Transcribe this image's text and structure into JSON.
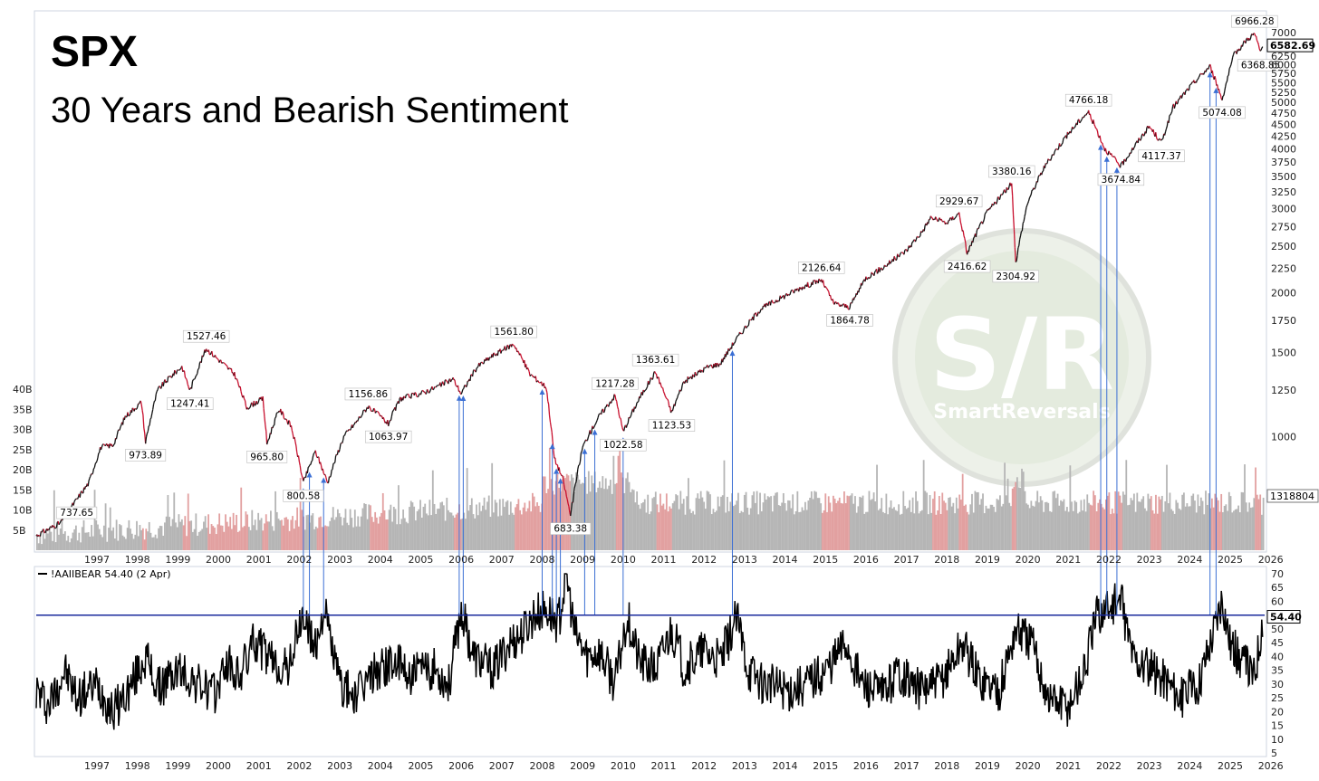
{
  "chart_data": {
    "type": "line",
    "title": "SPX",
    "subtitle": "30 Years and Bearish Sentiment",
    "x_ticks": [
      "1997",
      "1998",
      "1999",
      "2000",
      "2001",
      "2002",
      "2003",
      "2004",
      "2005",
      "2006",
      "2007",
      "2008",
      "2009",
      "2010",
      "2011",
      "2012",
      "2013",
      "2014",
      "2015",
      "2016",
      "2017",
      "2018",
      "2019",
      "2020",
      "2021",
      "2022",
      "2023",
      "2024",
      "2025",
      "2026"
    ],
    "price_axis": {
      "scale": "log",
      "ticks": [
        "1000",
        "1250",
        "1500",
        "1750",
        "2000",
        "2250",
        "2500",
        "2750",
        "3000",
        "3250",
        "3500",
        "3750",
        "4000",
        "4250",
        "4500",
        "4750",
        "5000",
        "5250",
        "5500",
        "5750",
        "6000",
        "6250",
        "7000"
      ],
      "last_value": "6582.69"
    },
    "volume_axis": {
      "ticks": [
        "5B",
        "10B",
        "15B",
        "20B",
        "25B",
        "30B",
        "35B",
        "40B"
      ],
      "last_value": "1318804"
    },
    "sentiment_axis": {
      "ticks": [
        "5",
        "10",
        "15",
        "20",
        "25",
        "30",
        "35",
        "40",
        "45",
        "50",
        "55",
        "60",
        "65",
        "70"
      ],
      "threshold": 55,
      "last_value": "54.40"
    },
    "series": [
      {
        "name": "SPX",
        "points": [
          [
            1996.0,
            620
          ],
          [
            1996.6,
            660
          ],
          [
            1997.0,
            737.65
          ],
          [
            1997.3,
            800
          ],
          [
            1997.6,
            950
          ],
          [
            1997.9,
            960
          ],
          [
            1998.2,
            1100
          ],
          [
            1998.6,
            1180
          ],
          [
            1998.7,
            973.89
          ],
          [
            1999.0,
            1250
          ],
          [
            1999.3,
            1330
          ],
          [
            1999.6,
            1400
          ],
          [
            1999.8,
            1247.41
          ],
          [
            2000.2,
            1527.46
          ],
          [
            2000.5,
            1450
          ],
          [
            2000.9,
            1350
          ],
          [
            2001.2,
            1150
          ],
          [
            2001.6,
            1200
          ],
          [
            2001.7,
            965.8
          ],
          [
            2002.0,
            1140
          ],
          [
            2002.3,
            1050
          ],
          [
            2002.6,
            800.58
          ],
          [
            2002.9,
            930
          ],
          [
            2003.2,
            800
          ],
          [
            2003.6,
            1000
          ],
          [
            2003.9,
            1070
          ],
          [
            2004.2,
            1156.86
          ],
          [
            2004.7,
            1063.97
          ],
          [
            2005.0,
            1200
          ],
          [
            2005.5,
            1230
          ],
          [
            2005.9,
            1270
          ],
          [
            2006.3,
            1320
          ],
          [
            2006.5,
            1230
          ],
          [
            2006.9,
            1400
          ],
          [
            2007.3,
            1480
          ],
          [
            2007.8,
            1561.8
          ],
          [
            2008.2,
            1350
          ],
          [
            2008.6,
            1270
          ],
          [
            2008.8,
            900
          ],
          [
            2009.0,
            820
          ],
          [
            2009.2,
            683.38
          ],
          [
            2009.5,
            950
          ],
          [
            2009.9,
            1100
          ],
          [
            2010.3,
            1217.28
          ],
          [
            2010.5,
            1022.58
          ],
          [
            2010.9,
            1200
          ],
          [
            2011.3,
            1363.61
          ],
          [
            2011.7,
            1123.53
          ],
          [
            2012.0,
            1300
          ],
          [
            2012.6,
            1400
          ],
          [
            2012.9,
            1420
          ],
          [
            2013.3,
            1600
          ],
          [
            2013.9,
            1850
          ],
          [
            2014.5,
            1970
          ],
          [
            2014.9,
            2050
          ],
          [
            2015.4,
            2126.64
          ],
          [
            2015.7,
            1900
          ],
          [
            2016.1,
            1864.78
          ],
          [
            2016.5,
            2150
          ],
          [
            2016.9,
            2250
          ],
          [
            2017.5,
            2450
          ],
          [
            2017.9,
            2690
          ],
          [
            2018.1,
            2870
          ],
          [
            2018.5,
            2800
          ],
          [
            2018.8,
            2929.67
          ],
          [
            2019.0,
            2416.62
          ],
          [
            2019.5,
            2950
          ],
          [
            2019.9,
            3230
          ],
          [
            2020.1,
            3380.16
          ],
          [
            2020.2,
            2304.92
          ],
          [
            2020.5,
            3100
          ],
          [
            2020.9,
            3650
          ],
          [
            2021.4,
            4200
          ],
          [
            2021.9,
            4700
          ],
          [
            2022.0,
            4766.18
          ],
          [
            2022.4,
            4000
          ],
          [
            2022.8,
            3674.84
          ],
          [
            2023.0,
            3900
          ],
          [
            2023.5,
            4450
          ],
          [
            2023.8,
            4117.37
          ],
          [
            2024.1,
            4900
          ],
          [
            2024.6,
            5500
          ],
          [
            2025.0,
            5950
          ],
          [
            2025.3,
            5074.08
          ],
          [
            2025.6,
            6300
          ],
          [
            2025.9,
            6750
          ],
          [
            2026.1,
            6966.28
          ],
          [
            2026.25,
            6368.85
          ],
          [
            2026.3,
            6582.69
          ]
        ]
      },
      {
        "name": "!AAIIBEAR",
        "legend": "!AAIIBEAR 54.40 (2 Apr)",
        "points": [
          [
            1996.0,
            28
          ],
          [
            1996.3,
            22
          ],
          [
            1996.7,
            35
          ],
          [
            1997.0,
            25
          ],
          [
            1997.5,
            30
          ],
          [
            1997.9,
            20
          ],
          [
            1998.3,
            28
          ],
          [
            1998.7,
            40
          ],
          [
            1999.0,
            28
          ],
          [
            1999.5,
            35
          ],
          [
            2000.0,
            30
          ],
          [
            2000.4,
            26
          ],
          [
            2000.7,
            38
          ],
          [
            2001.0,
            32
          ],
          [
            2001.4,
            46
          ],
          [
            2001.8,
            38
          ],
          [
            2002.2,
            35
          ],
          [
            2002.6,
            55
          ],
          [
            2002.9,
            42
          ],
          [
            2003.1,
            58
          ],
          [
            2003.5,
            30
          ],
          [
            2003.9,
            25
          ],
          [
            2004.3,
            34
          ],
          [
            2004.8,
            38
          ],
          [
            2005.3,
            33
          ],
          [
            2005.8,
            36
          ],
          [
            2006.2,
            30
          ],
          [
            2006.5,
            57
          ],
          [
            2006.8,
            40
          ],
          [
            2007.3,
            35
          ],
          [
            2007.7,
            45
          ],
          [
            2008.0,
            48
          ],
          [
            2008.3,
            55
          ],
          [
            2008.6,
            57
          ],
          [
            2008.9,
            52
          ],
          [
            2009.1,
            70
          ],
          [
            2009.3,
            48
          ],
          [
            2009.6,
            40
          ],
          [
            2009.9,
            42
          ],
          [
            2010.3,
            30
          ],
          [
            2010.6,
            55
          ],
          [
            2010.9,
            38
          ],
          [
            2011.3,
            35
          ],
          [
            2011.7,
            50
          ],
          [
            2012.0,
            36
          ],
          [
            2012.5,
            42
          ],
          [
            2012.9,
            38
          ],
          [
            2013.3,
            54
          ],
          [
            2013.6,
            35
          ],
          [
            2014.0,
            30
          ],
          [
            2014.6,
            28
          ],
          [
            2015.0,
            30
          ],
          [
            2015.5,
            35
          ],
          [
            2016.0,
            45
          ],
          [
            2016.4,
            30
          ],
          [
            2016.9,
            26
          ],
          [
            2017.3,
            35
          ],
          [
            2017.8,
            28
          ],
          [
            2018.3,
            30
          ],
          [
            2018.9,
            45
          ],
          [
            2019.3,
            32
          ],
          [
            2019.8,
            28
          ],
          [
            2020.2,
            50
          ],
          [
            2020.6,
            45
          ],
          [
            2021.0,
            25
          ],
          [
            2021.5,
            22
          ],
          [
            2021.9,
            35
          ],
          [
            2022.2,
            55
          ],
          [
            2022.5,
            58
          ],
          [
            2022.8,
            60
          ],
          [
            2023.1,
            40
          ],
          [
            2023.5,
            35
          ],
          [
            2023.9,
            32
          ],
          [
            2024.3,
            25
          ],
          [
            2024.7,
            30
          ],
          [
            2025.1,
            50
          ],
          [
            2025.3,
            62
          ],
          [
            2025.5,
            45
          ],
          [
            2025.8,
            38
          ],
          [
            2026.1,
            33
          ],
          [
            2026.3,
            54.4
          ]
        ]
      }
    ],
    "annotations": [
      "737.65",
      "973.89",
      "1247.41",
      "1527.46",
      "965.80",
      "800.58",
      "683.38",
      "1156.86",
      "1063.97",
      "1561.80",
      "1217.28",
      "1022.58",
      "1363.61",
      "1123.53",
      "2126.64",
      "1864.78",
      "2929.67",
      "2416.62",
      "3380.16",
      "2304.92",
      "4766.18",
      "3674.84",
      "4117.37",
      "5074.08",
      "6966.28",
      "6368.85"
    ],
    "signal_years": [
      2002.6,
      2002.75,
      2003.1,
      2006.45,
      2006.55,
      2008.5,
      2008.75,
      2008.85,
      2008.95,
      2009.55,
      2009.8,
      2010.5,
      2013.2,
      2022.3,
      2022.45,
      2022.7,
      2025.0,
      2025.15
    ],
    "watermark": {
      "big": "S/R",
      "small": "SmartReversals"
    }
  }
}
